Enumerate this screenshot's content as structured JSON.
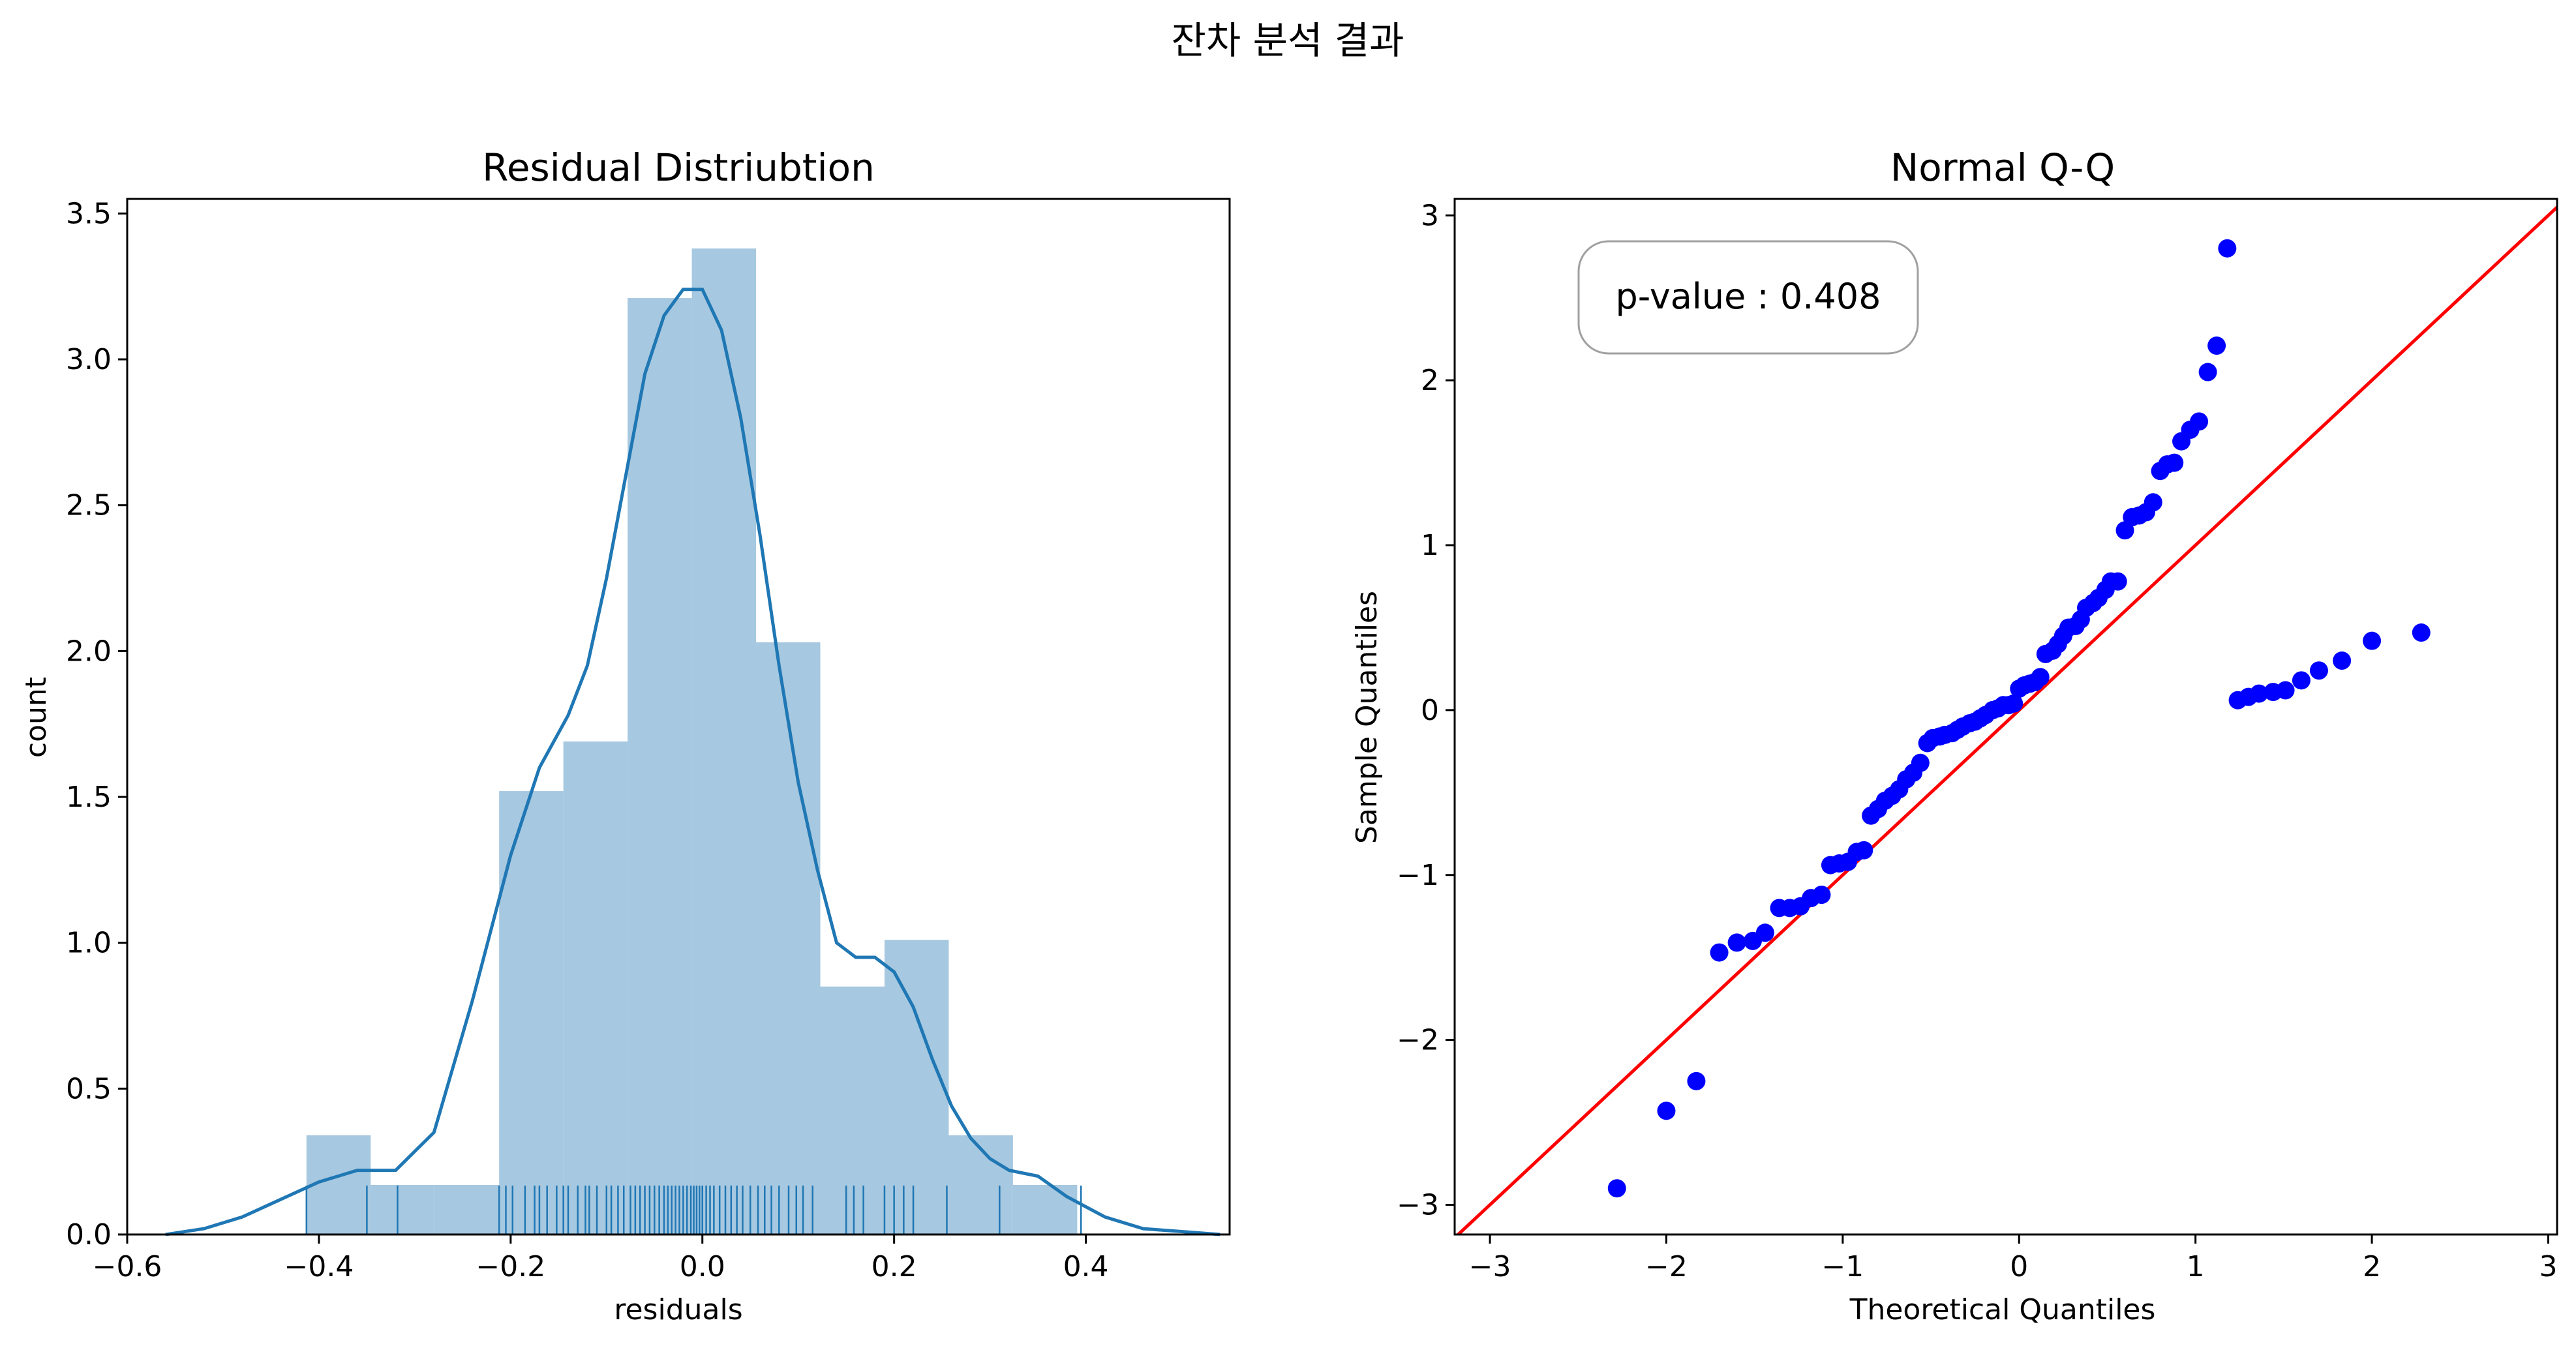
{
  "figure": {
    "suptitle": "잔차 분석 결과"
  },
  "chart_data": [
    {
      "type": "histogram",
      "title": "Residual Distriubtion",
      "xlabel": "residuals",
      "ylabel": "count",
      "xlim": [
        -0.6,
        0.55
      ],
      "ylim": [
        0,
        3.55
      ],
      "xticks": [
        -0.6,
        -0.4,
        -0.2,
        0.0,
        0.2,
        0.4
      ],
      "yticks": [
        0.0,
        0.5,
        1.0,
        1.5,
        2.0,
        2.5,
        3.0,
        3.5
      ],
      "bin_color": "#a6c8e0",
      "line_color": "#1f77b4",
      "bins": [
        {
          "x0": -0.413,
          "x1": -0.346,
          "value": 0.34
        },
        {
          "x0": -0.346,
          "x1": -0.279,
          "value": 0.17
        },
        {
          "x0": -0.279,
          "x1": -0.212,
          "value": 0.17
        },
        {
          "x0": -0.212,
          "x1": -0.145,
          "value": 1.52
        },
        {
          "x0": -0.145,
          "x1": -0.078,
          "value": 1.69
        },
        {
          "x0": -0.078,
          "x1": -0.011,
          "value": 3.21
        },
        {
          "x0": -0.011,
          "x1": 0.056,
          "value": 3.38
        },
        {
          "x0": 0.056,
          "x1": 0.123,
          "value": 2.03
        },
        {
          "x0": 0.123,
          "x1": 0.19,
          "value": 0.85
        },
        {
          "x0": 0.19,
          "x1": 0.257,
          "value": 1.01
        },
        {
          "x0": 0.257,
          "x1": 0.324,
          "value": 0.34
        },
        {
          "x0": 0.324,
          "x1": 0.391,
          "value": 0.17
        }
      ],
      "kde": {
        "x": [
          -0.56,
          -0.52,
          -0.48,
          -0.44,
          -0.4,
          -0.36,
          -0.32,
          -0.28,
          -0.24,
          -0.2,
          -0.17,
          -0.14,
          -0.12,
          -0.1,
          -0.08,
          -0.06,
          -0.04,
          -0.02,
          0.0,
          0.02,
          0.04,
          0.06,
          0.08,
          0.1,
          0.12,
          0.14,
          0.16,
          0.18,
          0.2,
          0.22,
          0.24,
          0.26,
          0.28,
          0.3,
          0.32,
          0.35,
          0.38,
          0.42,
          0.46,
          0.5,
          0.54
        ],
        "y": [
          0.0,
          0.02,
          0.06,
          0.12,
          0.18,
          0.22,
          0.22,
          0.35,
          0.8,
          1.3,
          1.6,
          1.78,
          1.95,
          2.25,
          2.6,
          2.95,
          3.15,
          3.24,
          3.24,
          3.1,
          2.8,
          2.4,
          1.95,
          1.55,
          1.25,
          1.0,
          0.95,
          0.95,
          0.9,
          0.78,
          0.6,
          0.44,
          0.33,
          0.26,
          0.22,
          0.2,
          0.13,
          0.06,
          0.02,
          0.01,
          0.0
        ]
      },
      "rug": [
        -0.413,
        -0.35,
        -0.318,
        -0.212,
        -0.205,
        -0.198,
        -0.185,
        -0.175,
        -0.17,
        -0.162,
        -0.152,
        -0.145,
        -0.14,
        -0.13,
        -0.122,
        -0.118,
        -0.11,
        -0.1,
        -0.095,
        -0.088,
        -0.082,
        -0.075,
        -0.07,
        -0.065,
        -0.06,
        -0.055,
        -0.05,
        -0.045,
        -0.04,
        -0.036,
        -0.032,
        -0.028,
        -0.024,
        -0.02,
        -0.016,
        -0.012,
        -0.009,
        -0.006,
        -0.003,
        0.0,
        0.004,
        0.008,
        0.012,
        0.018,
        0.024,
        0.03,
        0.036,
        0.042,
        0.05,
        0.058,
        0.065,
        0.072,
        0.08,
        0.09,
        0.098,
        0.105,
        0.115,
        0.15,
        0.158,
        0.168,
        0.19,
        0.2,
        0.21,
        0.22,
        0.255,
        0.31,
        0.395
      ]
    },
    {
      "type": "scatter",
      "title": "Normal Q-Q",
      "xlabel": "Theoretical Quantiles",
      "ylabel": "Sample Quantiles",
      "xlim": [
        -3.2,
        3.05
      ],
      "ylim": [
        -3.18,
        3.1
      ],
      "xticks": [
        -3,
        -2,
        -1,
        0,
        1,
        2,
        3
      ],
      "yticks": [
        -3,
        -2,
        -1,
        0,
        1,
        2,
        3
      ],
      "point_color": "#0000ff",
      "line_color": "#ff0000",
      "reference_line": [
        [
          -3.2,
          -3.2
        ],
        [
          3.05,
          3.05
        ]
      ],
      "annotation": "p-value : 0.408",
      "x": [
        -2.28,
        -2.0,
        -1.83,
        -1.7,
        -1.6,
        -1.51,
        -1.44,
        -1.36,
        -1.3,
        -1.24,
        -1.18,
        -1.12,
        -1.07,
        -1.02,
        -0.97,
        -0.92,
        -0.88,
        -0.84,
        -0.8,
        -0.76,
        -0.72,
        -0.68,
        -0.64,
        -0.6,
        -0.56,
        -0.52,
        -0.49,
        -0.45,
        -0.42,
        -0.38,
        -0.35,
        -0.32,
        -0.28,
        -0.25,
        -0.22,
        -0.19,
        -0.15,
        -0.12,
        -0.09,
        -0.06,
        -0.03,
        0.0,
        0.03,
        0.06,
        0.09,
        0.12,
        0.15,
        0.19,
        0.22,
        0.25,
        0.28,
        0.32,
        0.35,
        0.38,
        0.42,
        0.45,
        0.49,
        0.52,
        0.56,
        0.6,
        0.64,
        0.68,
        0.72,
        0.76,
        0.8,
        0.84,
        0.88,
        0.92,
        0.97,
        1.02,
        1.07,
        1.12,
        1.18,
        1.24,
        1.3,
        1.36,
        1.44,
        1.51,
        1.6,
        1.7,
        1.83,
        2.0,
        2.28
      ],
      "y": [
        -2.9,
        -2.43,
        -2.25,
        -1.47,
        -1.41,
        -1.4,
        -1.35,
        -1.2,
        -1.2,
        -1.19,
        -1.14,
        -1.12,
        -0.94,
        -0.93,
        -0.92,
        -0.86,
        -0.85,
        -0.64,
        -0.6,
        -0.55,
        -0.52,
        -0.48,
        -0.42,
        -0.38,
        -0.32,
        -0.2,
        -0.17,
        -0.16,
        -0.15,
        -0.14,
        -0.12,
        -0.1,
        -0.08,
        -0.07,
        -0.05,
        -0.03,
        0.0,
        0.01,
        0.03,
        0.03,
        0.04,
        0.13,
        0.15,
        0.16,
        0.17,
        0.2,
        0.34,
        0.36,
        0.4,
        0.45,
        0.5,
        0.51,
        0.55,
        0.62,
        0.65,
        0.68,
        0.73,
        0.78,
        0.78,
        1.09,
        1.17,
        1.18,
        1.2,
        1.26,
        1.45,
        1.49,
        1.5,
        1.63,
        1.7,
        1.75,
        2.05,
        2.21,
        2.8,
        0.06,
        0.08,
        0.1,
        0.11,
        0.12,
        0.18,
        0.24,
        0.3,
        0.42,
        0.47
      ]
    }
  ]
}
